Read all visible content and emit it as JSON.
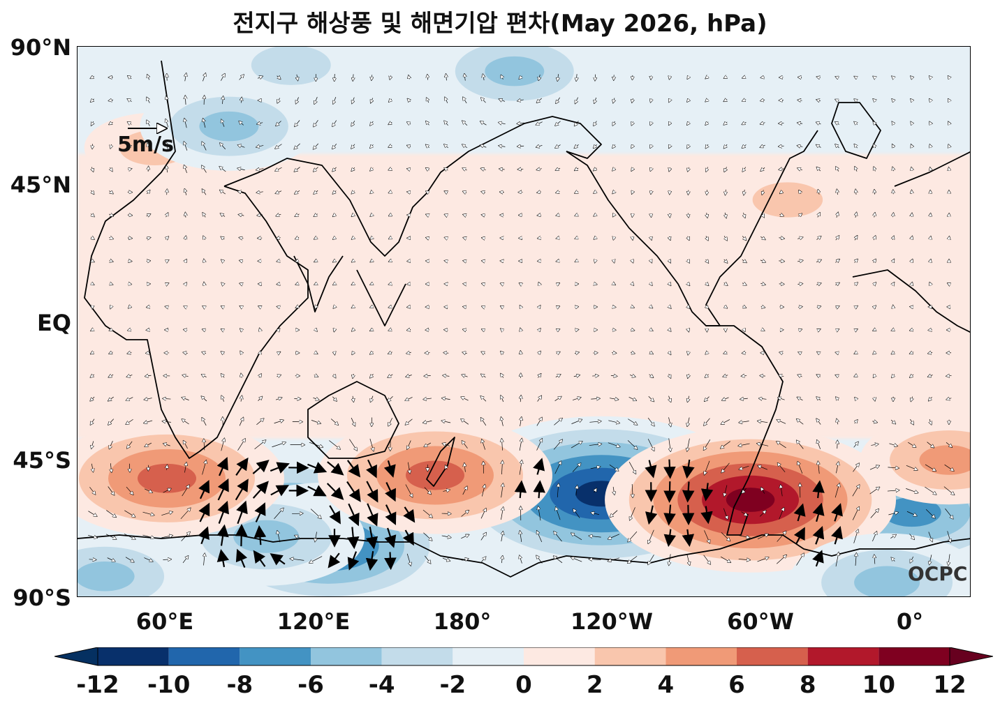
{
  "title": "전지구 해상풍 및 해면기압 편차(May 2026, hPa)",
  "lat_labels": [
    "90°N",
    "45°N",
    "EQ",
    "45°S",
    "90°S"
  ],
  "lon_labels": [
    "60°E",
    "120°E",
    "180°",
    "120°W",
    "60°W",
    "0°"
  ],
  "scale_label": "5m/s",
  "credit": "OCPC",
  "colorbar": {
    "ticks": [
      "-12",
      "-10",
      "-8",
      "-6",
      "-4",
      "-2",
      "0",
      "2",
      "4",
      "6",
      "8",
      "10",
      "12"
    ],
    "colors": [
      "#08306b",
      "#2166ac",
      "#4393c3",
      "#92c5de",
      "#c3dcea",
      "#e6f0f6",
      "#fde9e2",
      "#f9c6ad",
      "#f09a77",
      "#d6604d",
      "#b2182b",
      "#7f0020"
    ],
    "under_color": "#053061",
    "over_color": "#67001f"
  },
  "map": {
    "lon_range": [
      24,
      384
    ],
    "lat_range": [
      -90,
      90
    ],
    "background_color": "#e6f0f6",
    "anomaly_centers": [
      {
        "lon": 235,
        "lat": -56,
        "value": -12
      },
      {
        "lon": 110,
        "lat": -62,
        "value": -8
      },
      {
        "lon": 125,
        "lat": -73,
        "value": -9
      },
      {
        "lon": 360,
        "lat": -62,
        "value": -8
      },
      {
        "lon": 100,
        "lat": -70,
        "value": -6
      },
      {
        "lon": 295,
        "lat": -58,
        "value": 11
      },
      {
        "lon": 168,
        "lat": -50,
        "value": 8
      },
      {
        "lon": 60,
        "lat": -51,
        "value": 8
      },
      {
        "lon": 375,
        "lat": -45,
        "value": 5
      },
      {
        "lon": 310,
        "lat": 40,
        "value": 3
      },
      {
        "lon": 55,
        "lat": 57,
        "value": 3
      },
      {
        "lon": 200,
        "lat": 82,
        "value": -5
      },
      {
        "lon": 110,
        "lat": 84,
        "value": -4
      },
      {
        "lon": 85,
        "lat": 64,
        "value": -5
      },
      {
        "lon": 350,
        "lat": -85,
        "value": -6
      },
      {
        "lon": 35,
        "lat": -83,
        "value": -5
      }
    ]
  }
}
